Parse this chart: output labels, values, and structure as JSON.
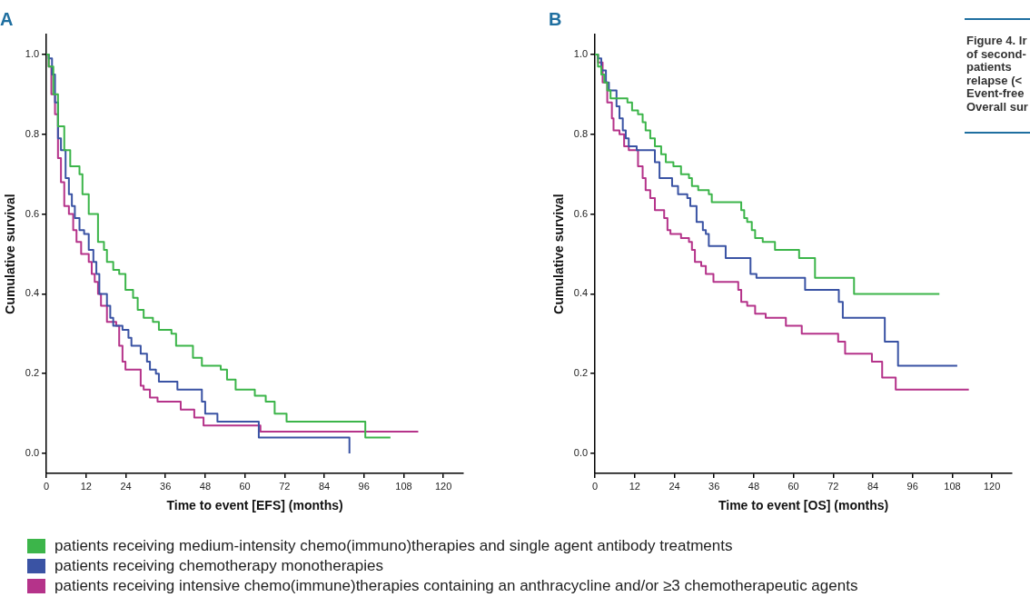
{
  "chart_data": [
    {
      "type": "step",
      "title": "A",
      "xlabel": "Time to event [EFS] (months)",
      "ylabel": "Cumulative survival",
      "xlim": [
        0,
        126
      ],
      "ylim": [
        -0.05,
        1.05
      ],
      "xticks": [
        0,
        12,
        24,
        36,
        48,
        60,
        72,
        84,
        96,
        108,
        120
      ],
      "yticks": [
        {
          "value": 0,
          "label": "0.0"
        },
        {
          "value": 0.2,
          "label": "0.2"
        },
        {
          "value": 0.4,
          "label": "0.4"
        },
        {
          "value": 0.6,
          "label": "0.6"
        },
        {
          "value": 0.8,
          "label": "0.8"
        },
        {
          "value": 1,
          "label": "1.0"
        }
      ],
      "grid": false,
      "legend": "bottom",
      "marker": "none",
      "line_style": "solid",
      "series": [
        {
          "name": "patients receiving medium-intensity chemo(immuno)therapies and single agent antibody treatments",
          "color": "#3cb54a",
          "x": [
            0,
            0.7,
            2.1,
            3.5,
            5.4,
            7.2,
            10,
            10.9,
            12.8,
            15.6,
            17.4,
            18.3,
            20.2,
            22,
            23.9,
            26.2,
            27.6,
            29.4,
            32.2,
            34,
            37.8,
            39.2,
            44.3,
            47,
            48.9,
            52.7,
            54.6,
            57.2,
            63,
            66.3,
            69,
            72.6,
            96.4,
            104
          ],
          "values": [
            1,
            0.97,
            0.9,
            0.82,
            0.76,
            0.72,
            0.7,
            0.65,
            0.6,
            0.53,
            0.51,
            0.48,
            0.46,
            0.45,
            0.41,
            0.39,
            0.36,
            0.34,
            0.33,
            0.31,
            0.3,
            0.27,
            0.24,
            0.22,
            0.22,
            0.21,
            0.185,
            0.16,
            0.145,
            0.13,
            0.1,
            0.08,
            0.04,
            0.04
          ]
        },
        {
          "name": "patients receiving chemotherapy monotherapies",
          "color": "#3a53a4",
          "x": [
            0,
            0.7,
            1.7,
            2.6,
            3.5,
            4.4,
            5.8,
            6.8,
            7.7,
            8.6,
            10,
            11.4,
            12.8,
            14.2,
            15.1,
            16,
            18.3,
            19.3,
            20.2,
            23,
            24.8,
            25.7,
            28.5,
            30.4,
            31.3,
            33.1,
            34,
            39.6,
            47,
            48,
            51.7,
            64.2,
            91.5,
            91.6
          ],
          "values": [
            1,
            0.99,
            0.95,
            0.88,
            0.79,
            0.76,
            0.69,
            0.65,
            0.62,
            0.59,
            0.56,
            0.55,
            0.51,
            0.48,
            0.45,
            0.4,
            0.37,
            0.34,
            0.32,
            0.31,
            0.29,
            0.27,
            0.25,
            0.23,
            0.21,
            0.2,
            0.18,
            0.16,
            0.13,
            0.1,
            0.08,
            0.04,
            0.04,
            0
          ]
        },
        {
          "name": "patients receiving intensive chemo(immune)therapies containing an anthracycline and/or ≥3 chemotherapeutic agents",
          "color": "#b5338a",
          "x": [
            0,
            0.7,
            1.5,
            2.6,
            3.5,
            4.4,
            5.4,
            6.8,
            8.1,
            9.1,
            10.5,
            12.8,
            13.7,
            14.6,
            15.6,
            16.5,
            18.3,
            21.1,
            22,
            23,
            23.9,
            28.5,
            29.4,
            31.3,
            33.6,
            40.6,
            44.7,
            47.5,
            64.7,
            112.4
          ],
          "values": [
            1,
            0.97,
            0.9,
            0.85,
            0.74,
            0.68,
            0.62,
            0.6,
            0.56,
            0.53,
            0.5,
            0.48,
            0.45,
            0.43,
            0.4,
            0.37,
            0.33,
            0.32,
            0.27,
            0.23,
            0.21,
            0.17,
            0.16,
            0.14,
            0.13,
            0.11,
            0.09,
            0.07,
            0.055,
            0.055
          ]
        }
      ]
    },
    {
      "type": "step",
      "title": "B",
      "xlabel": "Time to event [OS] (months)",
      "ylabel": "Cumulative survival",
      "xlim": [
        0,
        126
      ],
      "ylim": [
        -0.05,
        1.05
      ],
      "xticks": [
        0,
        12,
        24,
        36,
        48,
        60,
        72,
        84,
        96,
        108,
        120
      ],
      "yticks": [
        {
          "value": 0,
          "label": "0.0"
        },
        {
          "value": 0.2,
          "label": "0.2"
        },
        {
          "value": 0.4,
          "label": "0.4"
        },
        {
          "value": 0.6,
          "label": "0.6"
        },
        {
          "value": 0.8,
          "label": "0.8"
        },
        {
          "value": 1,
          "label": "1.0"
        }
      ],
      "grid": false,
      "marker": "none",
      "line_style": "solid",
      "annotations": [
        "Figure 4. Ir of second- patients relapse (< Event-free Overall sur"
      ],
      "series": [
        {
          "color": "#3cb54a",
          "x": [
            0,
            0.9,
            1.9,
            2.8,
            3.7,
            4.7,
            9.8,
            11.2,
            13,
            14.4,
            15.3,
            16.7,
            18.1,
            20,
            21.4,
            23.7,
            26,
            28.4,
            29.3,
            31.2,
            34.4,
            35.3,
            44.2,
            45.1,
            46,
            47.4,
            48.4,
            50.7,
            54.4,
            61.7,
            66.5,
            78.3,
            104.1
          ],
          "values": [
            1,
            0.97,
            0.95,
            0.93,
            0.91,
            0.89,
            0.88,
            0.86,
            0.85,
            0.83,
            0.81,
            0.79,
            0.77,
            0.75,
            0.73,
            0.72,
            0.7,
            0.69,
            0.67,
            0.66,
            0.65,
            0.63,
            0.61,
            0.59,
            0.58,
            0.56,
            0.54,
            0.53,
            0.51,
            0.49,
            0.44,
            0.4,
            0.4
          ]
        },
        {
          "color": "#3a53a4",
          "x": [
            0,
            0.9,
            1.9,
            3.3,
            4.2,
            6.5,
            7.4,
            8.4,
            9.3,
            10.2,
            12.6,
            18.1,
            19.5,
            23.3,
            25.1,
            27.9,
            28.8,
            30.7,
            32.6,
            33.5,
            34.4,
            39.5,
            47,
            48.8,
            63.5,
            73.7,
            74.9,
            87.6,
            91.6,
            109.5
          ],
          "values": [
            1,
            0.99,
            0.96,
            0.93,
            0.91,
            0.87,
            0.84,
            0.81,
            0.79,
            0.77,
            0.76,
            0.73,
            0.69,
            0.67,
            0.65,
            0.64,
            0.62,
            0.58,
            0.56,
            0.55,
            0.52,
            0.49,
            0.45,
            0.44,
            0.41,
            0.38,
            0.34,
            0.28,
            0.22,
            0.22
          ]
        },
        {
          "color": "#b5338a",
          "x": [
            0,
            0.9,
            2.3,
            3.7,
            5.1,
            5.6,
            7.4,
            8.8,
            10.2,
            13,
            14.4,
            15.3,
            16.7,
            18.1,
            20.9,
            21.9,
            22.8,
            26,
            28.4,
            29.3,
            30.2,
            32.1,
            33.5,
            35.8,
            43.3,
            44.2,
            46,
            48.4,
            51.6,
            57.7,
            62.5,
            73.5,
            75.6,
            83.7,
            86.8,
            90.9,
            113
          ],
          "values": [
            1,
            0.98,
            0.93,
            0.88,
            0.84,
            0.81,
            0.8,
            0.77,
            0.76,
            0.72,
            0.69,
            0.66,
            0.64,
            0.61,
            0.59,
            0.56,
            0.55,
            0.54,
            0.53,
            0.51,
            0.48,
            0.47,
            0.45,
            0.43,
            0.41,
            0.38,
            0.37,
            0.35,
            0.34,
            0.32,
            0.3,
            0.28,
            0.25,
            0.23,
            0.19,
            0.16,
            0.16
          ]
        }
      ]
    }
  ]
}
